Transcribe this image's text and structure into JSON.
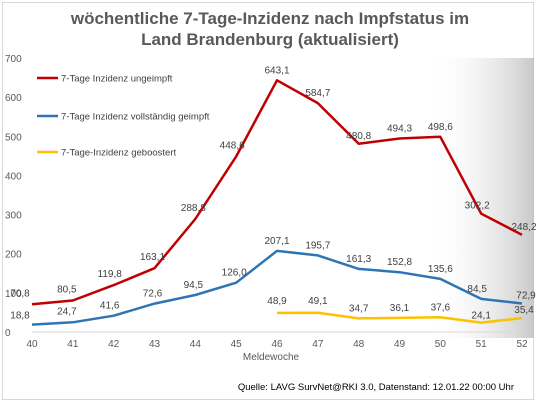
{
  "chart_data": {
    "type": "line",
    "title": "wöchentliche 7-Tage-Inzidenz nach Impfstatus im Land Brandenburg (aktualisiert)",
    "xlabel": "Meldewoche",
    "ylabel": "",
    "ylim": [
      0,
      700
    ],
    "yticks": [
      0,
      100,
      200,
      300,
      400,
      500,
      600,
      700
    ],
    "categories": [
      "40",
      "41",
      "42",
      "43",
      "44",
      "45",
      "46",
      "47",
      "48",
      "49",
      "50",
      "51",
      "52"
    ],
    "grid": false,
    "legend_position": "top-left",
    "series": [
      {
        "name": "7-Tage Inzidenz ungeimpft",
        "color": "#c00000",
        "values": [
          70.8,
          80.5,
          119.8,
          163.1,
          288.8,
          448.6,
          643.1,
          584.7,
          480.8,
          494.3,
          498.6,
          302.2,
          248.2
        ],
        "labels": [
          "70,8",
          "80,5",
          "119,8",
          "163,1",
          "288,8",
          "448,6",
          "643,1",
          "584,7",
          "480,8",
          "494,3",
          "498,6",
          "302,2",
          "248,2"
        ]
      },
      {
        "name": "7-Tage Inzidenz vollständig geimpft",
        "color": "#2e75b6",
        "values": [
          18.8,
          24.7,
          41.6,
          72.6,
          94.5,
          126.0,
          207.1,
          195.7,
          161.3,
          152.8,
          135.6,
          84.5,
          72.9
        ],
        "labels": [
          "18,8",
          "24,7",
          "41,6",
          "72,6",
          "94,5",
          "126,0",
          "207,1",
          "195,7",
          "161,3",
          "152,8",
          "135,6",
          "84,5",
          "72,9"
        ]
      },
      {
        "name": "7-Tage-Inzidenz geboostert",
        "color": "#ffc000",
        "values": [
          null,
          null,
          null,
          null,
          null,
          null,
          48.9,
          49.1,
          34.7,
          36.1,
          37.6,
          24.1,
          35.4
        ],
        "labels": [
          "",
          "",
          "",
          "",
          "",
          "",
          "48,9",
          "49,1",
          "34,7",
          "36,1",
          "37,6",
          "24,1",
          "35,4"
        ]
      }
    ],
    "source": "Quelle: LAVG SurvNet@RKI 3.0, Datenstand: 12.01.22 00:00 Uhr"
  }
}
